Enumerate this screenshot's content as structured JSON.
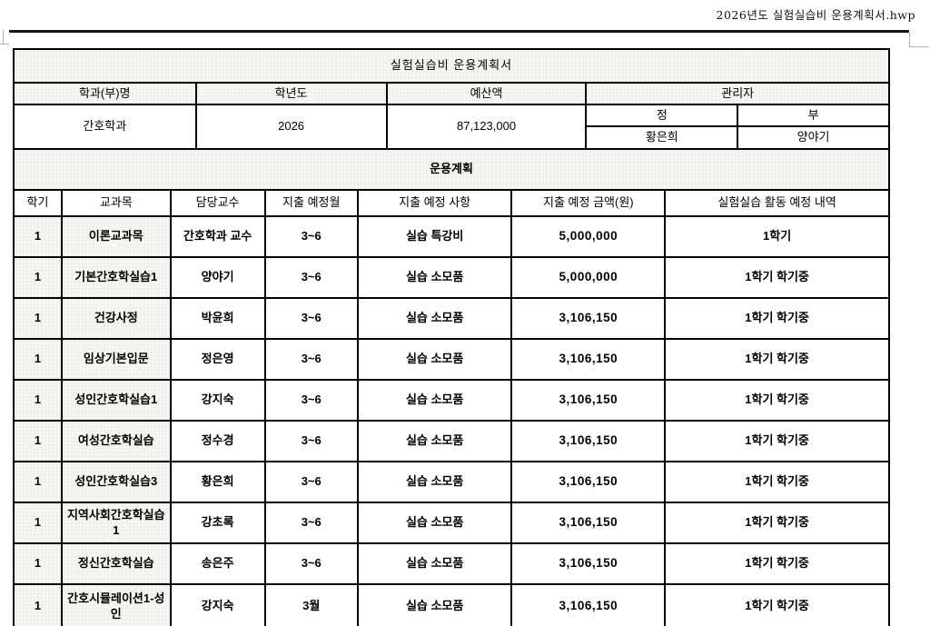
{
  "window": {
    "filename_label": "2026년도 실험실습비 운용계획서.hwp"
  },
  "doc": {
    "title": "실험실습비 운용계획서",
    "info": {
      "labels": {
        "dept": "학과(부)명",
        "year": "학년도",
        "budget": "예산액",
        "manager": "관리자",
        "primary": "정",
        "secondary": "부"
      },
      "values": {
        "dept": "간호학과",
        "year": "2026",
        "budget": "87,123,000",
        "primary": "황은희",
        "secondary": "양야기"
      }
    },
    "plan": {
      "section_title": "운용계획",
      "columns": [
        "학기",
        "교과목",
        "담당교수",
        "지출 예정월",
        "지출 예정 사항",
        "지출 예정 금액(원)",
        "실험실습 활동 예정 내역"
      ],
      "rows": [
        [
          "1",
          "이론교과목",
          "간호학과 교수",
          "3~6",
          "실습 특강비",
          "5,000,000",
          "1학기"
        ],
        [
          "1",
          "기본간호학실습1",
          "양야기",
          "3~6",
          "실습 소모품",
          "5,000,000",
          "1학기 학기중"
        ],
        [
          "1",
          "건강사정",
          "박윤희",
          "3~6",
          "실습 소모품",
          "3,106,150",
          "1학기 학기중"
        ],
        [
          "1",
          "임상기본입문",
          "정은영",
          "3~6",
          "실습 소모품",
          "3,106,150",
          "1학기 학기중"
        ],
        [
          "1",
          "성인간호학실습1",
          "강지숙",
          "3~6",
          "실습 소모품",
          "3,106,150",
          "1학기 학기중"
        ],
        [
          "1",
          "여성간호학실습",
          "정수경",
          "3~6",
          "실습 소모품",
          "3,106,150",
          "1학기 학기중"
        ],
        [
          "1",
          "성인간호학실습3",
          "황은희",
          "3~6",
          "실습 소모품",
          "3,106,150",
          "1학기 학기중"
        ],
        [
          "1",
          "지역사회간호학실습1",
          "강초록",
          "3~6",
          "실습 소모품",
          "3,106,150",
          "1학기 학기중"
        ],
        [
          "1",
          "정신간호학실습",
          "송은주",
          "3~6",
          "실습 소모품",
          "3,106,150",
          "1학기 학기중"
        ],
        [
          "1",
          "간호시뮬레이션1-성인",
          "강지숙",
          "3월",
          "실습 소모품",
          "3,106,150",
          "1학기 학기중"
        ]
      ]
    },
    "colors": {
      "cell_shade": "#f5f5f1",
      "border": "#000000",
      "page_guide": "#b0b0ac"
    }
  }
}
